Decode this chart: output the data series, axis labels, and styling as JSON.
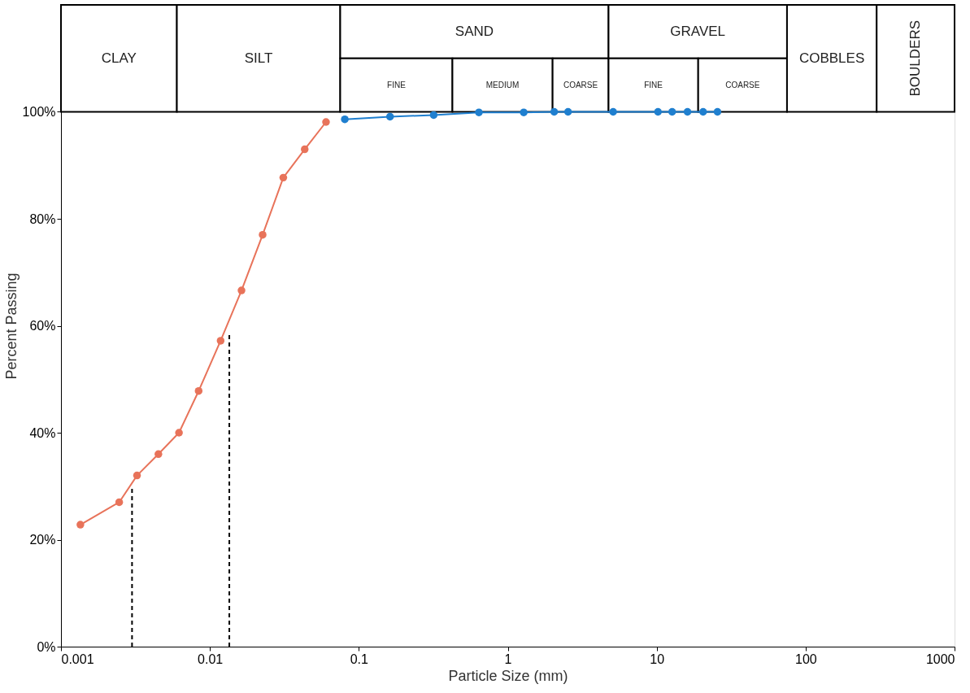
{
  "chart_data": {
    "type": "line",
    "xlabel": "Particle Size (mm)",
    "ylabel": "Percent Passing",
    "log": "x",
    "xlim": [
      0.001,
      1000
    ],
    "xticks": [
      0.001,
      0.01,
      0.1,
      1,
      10,
      100,
      1000
    ],
    "ylim": [
      0,
      120
    ],
    "yticks": [
      {
        "value": 0,
        "label": "0%"
      },
      {
        "value": 20,
        "label": "20%"
      },
      {
        "value": 40,
        "label": "40%"
      },
      {
        "value": 60,
        "label": "60%"
      },
      {
        "value": 80,
        "label": "80%"
      },
      {
        "value": 100,
        "label": "100%"
      }
    ],
    "grid": false,
    "marker": "circle",
    "series": [
      {
        "color": "#e8735a",
        "x": [
          0.00135,
          0.00246,
          0.00324,
          0.00451,
          0.0062,
          0.0084,
          0.0118,
          0.0163,
          0.0226,
          0.0311,
          0.0433,
          0.0602
        ],
        "values": [
          22.8,
          27,
          32,
          36,
          40,
          47.8,
          57.2,
          66.6,
          77,
          87.7,
          93,
          98.1
        ]
      },
      {
        "color": "#1f7fcf",
        "x": [
          0.0805,
          0.162,
          0.318,
          0.64,
          1.28,
          2.05,
          2.54,
          5.1,
          10.2,
          12.7,
          16.1,
          20.5,
          25.6
        ],
        "values": [
          98.6,
          99.1,
          99.4,
          99.9,
          99.9,
          100,
          100,
          100,
          100,
          100,
          100,
          100,
          100
        ]
      },
      {
        "color": "#000000",
        "type": "line",
        "marker": "none",
        "line_style": "dashed",
        "x": [
          0.003,
          0.003
        ],
        "values": [
          0,
          30
        ]
      },
      {
        "color": "#000000",
        "type": "line",
        "marker": "none",
        "line_style": "dashed",
        "x": [
          0.0135,
          0.0135
        ],
        "values": [
          0,
          58.8
        ]
      }
    ],
    "bands": [
      {
        "axis": "x",
        "from": 0.001,
        "to": 0.006,
        "label": "CLAY"
      },
      {
        "axis": "x",
        "from": 0.006,
        "to": 0.075,
        "label": "SILT"
      },
      {
        "axis": "x",
        "from": 0.075,
        "to": 4.75,
        "label": "SAND"
      },
      {
        "axis": "x",
        "from": 0.075,
        "to": 0.425,
        "label": "FINE"
      },
      {
        "axis": "x",
        "from": 0.425,
        "to": 2,
        "label": "MEDIUM"
      },
      {
        "axis": "x",
        "from": 2,
        "to": 4.75,
        "label": "COARSE"
      },
      {
        "axis": "x",
        "from": 4.75,
        "to": 75,
        "label": "GRAVEL"
      },
      {
        "axis": "x",
        "from": 4.75,
        "to": 19,
        "label": "FINE"
      },
      {
        "axis": "x",
        "from": 19,
        "to": 75,
        "label": "COARSE"
      },
      {
        "axis": "x",
        "from": 75,
        "to": 300,
        "label": "COBBLES"
      },
      {
        "axis": "x",
        "from": 300,
        "to": 1000,
        "label": "BOULDERS"
      }
    ]
  }
}
